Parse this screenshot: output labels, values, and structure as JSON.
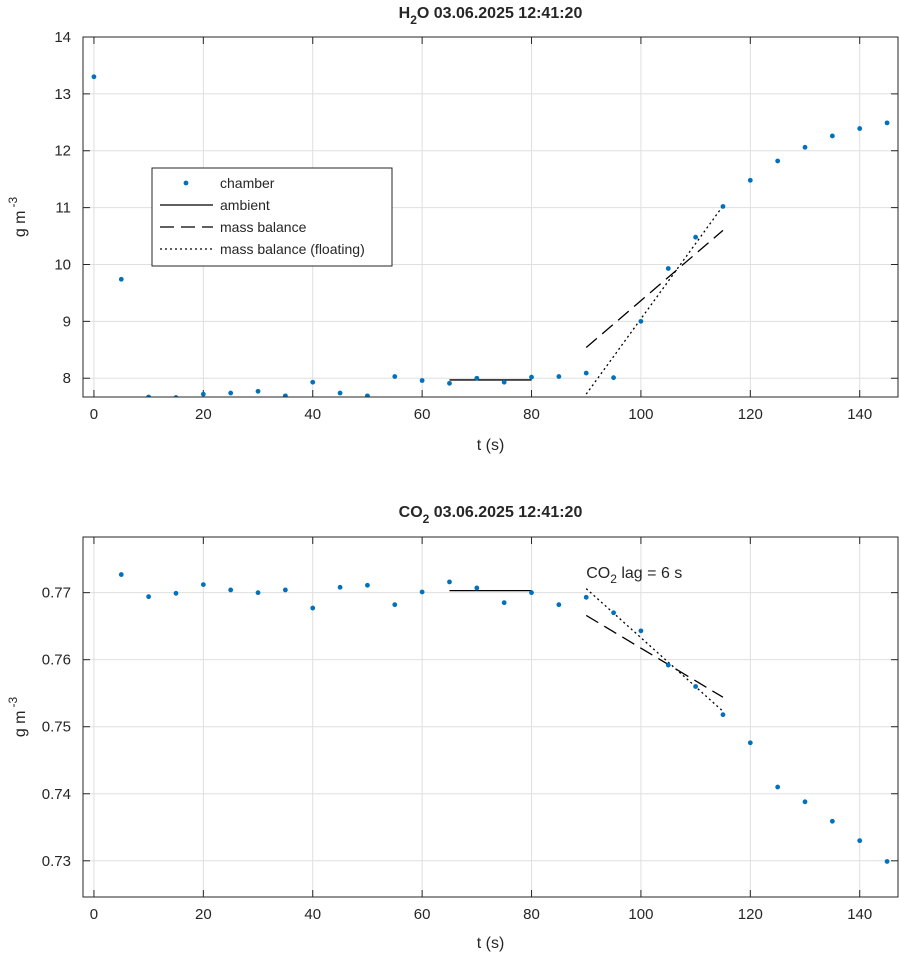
{
  "chart_data": [
    {
      "type": "scatter",
      "title_main": "H",
      "title_sub": "2",
      "title_rest": "O  03.06.2025 12:41:20",
      "xlabel": "t (s)",
      "ylabel_main": "g m",
      "ylabel_sup": "-3",
      "xlim": [
        -2,
        147
      ],
      "ylim": [
        7.67,
        14
      ],
      "xticks": [
        0,
        20,
        40,
        60,
        80,
        100,
        120,
        140
      ],
      "yticks": [
        8,
        9,
        10,
        11,
        12,
        13,
        14
      ],
      "ytick_labels": [
        "8",
        "9",
        "10",
        "11",
        "12",
        "13",
        "14"
      ],
      "grid": true,
      "legend_position": "left",
      "series": [
        {
          "name": "chamber",
          "style": "dots",
          "color": "#0072BD",
          "x": [
            0,
            5,
            10,
            15,
            20,
            25,
            30,
            35,
            40,
            45,
            50,
            55,
            60,
            65,
            70,
            75,
            80,
            85,
            90,
            95,
            100,
            105,
            110,
            115,
            120,
            125,
            130,
            135,
            140,
            145
          ],
          "y": [
            13.3,
            9.74,
            7.67,
            7.66,
            7.72,
            7.74,
            7.77,
            7.69,
            7.93,
            7.74,
            7.69,
            8.03,
            7.96,
            7.91,
            8.0,
            7.93,
            8.02,
            8.03,
            8.09,
            8.01,
            9.0,
            9.93,
            10.48,
            11.02,
            11.48,
            11.82,
            12.06,
            12.26,
            12.39,
            12.49
          ]
        },
        {
          "name": "ambient",
          "style": "solid",
          "color": "#000000",
          "x": [
            65,
            80
          ],
          "y": [
            7.97,
            7.97
          ]
        },
        {
          "name": "mass balance",
          "style": "dashed",
          "color": "#000000",
          "x": [
            90,
            115
          ],
          "y": [
            8.54,
            10.6
          ]
        },
        {
          "name": "mass balance (floating)",
          "style": "dotted",
          "color": "#000000",
          "x": [
            90,
            115
          ],
          "y": [
            7.72,
            11.03
          ]
        }
      ]
    },
    {
      "type": "scatter",
      "title_main": "CO",
      "title_sub": "2",
      "title_rest": "  03.06.2025 12:41:20",
      "xlabel": "t (s)",
      "ylabel_main": "g m",
      "ylabel_sup": "-3",
      "xlim": [
        -2,
        147
      ],
      "ylim": [
        0.7246,
        0.7783
      ],
      "xticks": [
        0,
        20,
        40,
        60,
        80,
        100,
        120,
        140
      ],
      "yticks": [
        0.73,
        0.74,
        0.75,
        0.76,
        0.77
      ],
      "ytick_labels": [
        "0.73",
        "0.74",
        "0.75",
        "0.76",
        "0.77"
      ],
      "grid": true,
      "annotation": {
        "main": "CO",
        "sub": "2",
        "rest": " lag = 6 s",
        "x": 90,
        "y": 0.7722
      },
      "series": [
        {
          "name": "chamber",
          "style": "dots",
          "color": "#0072BD",
          "x": [
            5,
            10,
            15,
            20,
            25,
            30,
            35,
            40,
            45,
            50,
            55,
            60,
            65,
            70,
            75,
            80,
            85,
            90,
            95,
            100,
            105,
            110,
            115,
            120,
            125,
            130,
            135,
            140,
            145
          ],
          "y": [
            0.7727,
            0.7694,
            0.7699,
            0.7712,
            0.7704,
            0.77,
            0.7704,
            0.7677,
            0.7708,
            0.7711,
            0.7682,
            0.7701,
            0.7716,
            0.7707,
            0.7685,
            0.77,
            0.7682,
            0.7693,
            0.767,
            0.7643,
            0.7592,
            0.756,
            0.7518,
            0.7476,
            0.741,
            0.7388,
            0.7359,
            0.733,
            0.7299
          ]
        },
        {
          "name": "ambient",
          "style": "solid",
          "color": "#000000",
          "x": [
            65,
            80
          ],
          "y": [
            0.7703,
            0.7703
          ]
        },
        {
          "name": "mass balance",
          "style": "dashed",
          "color": "#000000",
          "x": [
            90,
            115
          ],
          "y": [
            0.7666,
            0.7544
          ]
        },
        {
          "name": "mass balance (floating)",
          "style": "dotted",
          "color": "#000000",
          "x": [
            90,
            115
          ],
          "y": [
            0.7706,
            0.7523
          ]
        }
      ]
    }
  ]
}
